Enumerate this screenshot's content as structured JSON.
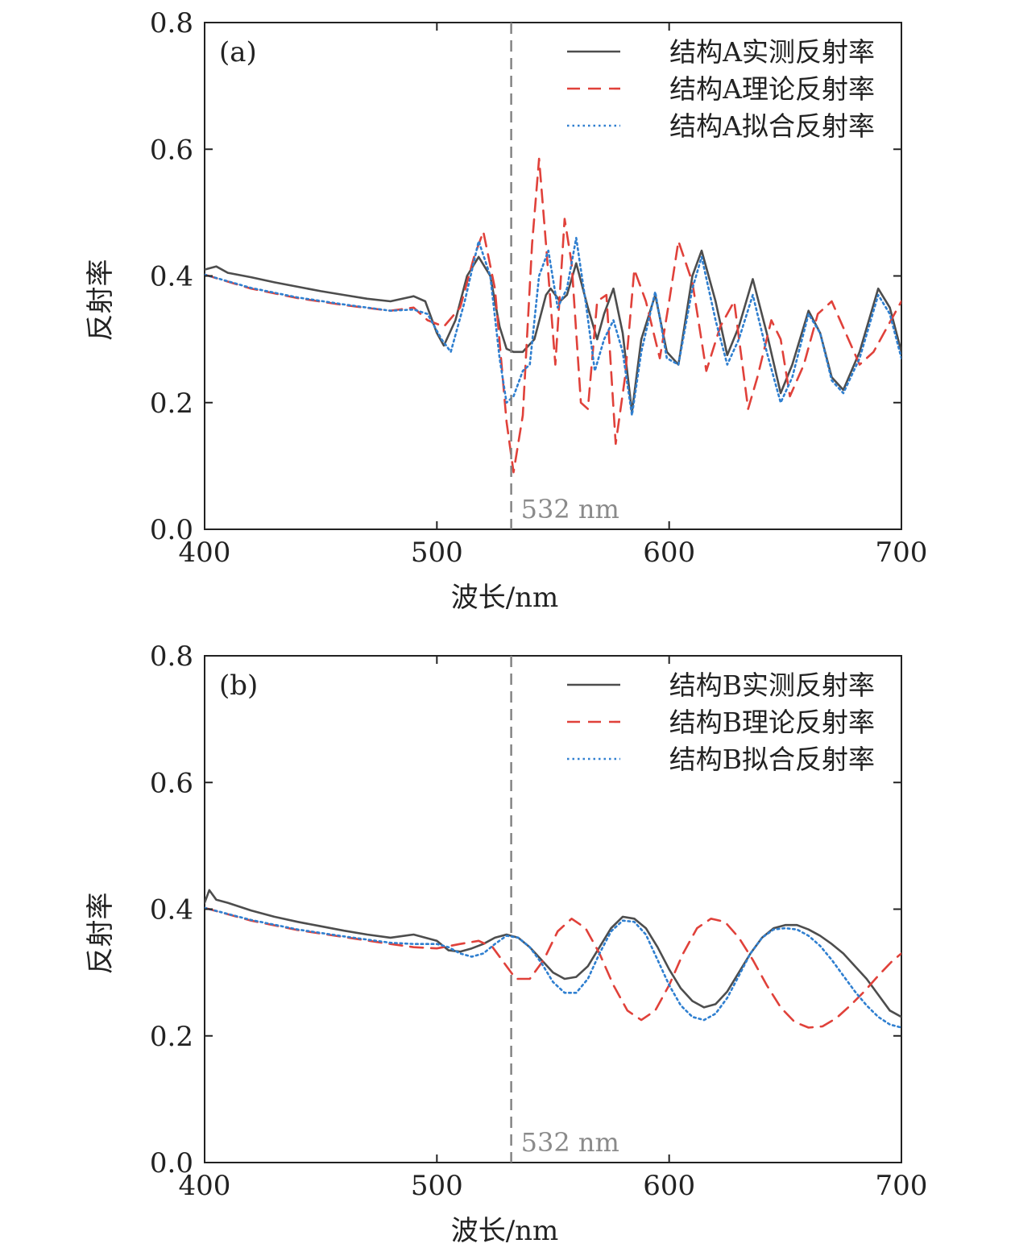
{
  "colors": {
    "measured": "#4d4d4d",
    "theory": "#e0413a",
    "fit": "#2f7fd0",
    "marker": "#808080"
  },
  "chart_data": [
    {
      "type": "line",
      "panel_label": "(a)",
      "xlabel": "波长/nm",
      "ylabel": "反射率",
      "xlim": [
        400,
        700
      ],
      "ylim": [
        0.0,
        0.8
      ],
      "xticks": [
        "400",
        "500",
        "600",
        "700"
      ],
      "yticks": [
        "0.0",
        "0.2",
        "0.4",
        "0.6",
        "0.8"
      ],
      "legend_position": "top-right",
      "grid": false,
      "vline": {
        "x": 532,
        "label": "532 nm"
      },
      "series": [
        {
          "name": "结构A实测反射率",
          "style": "solid",
          "x": [
            400,
            405,
            410,
            420,
            430,
            440,
            450,
            460,
            470,
            480,
            490,
            495,
            500,
            503,
            508,
            513,
            518,
            523,
            527,
            530,
            533,
            537,
            542,
            547,
            549,
            553,
            556,
            560,
            565,
            569,
            572,
            576,
            580,
            584,
            588,
            594,
            599,
            604,
            610,
            614,
            620,
            625,
            630,
            636,
            642,
            648,
            653,
            660,
            665,
            670,
            675,
            682,
            690,
            695,
            700
          ],
          "values": [
            0.41,
            0.415,
            0.405,
            0.398,
            0.39,
            0.383,
            0.376,
            0.37,
            0.364,
            0.36,
            0.368,
            0.36,
            0.31,
            0.29,
            0.33,
            0.4,
            0.43,
            0.4,
            0.32,
            0.285,
            0.28,
            0.28,
            0.3,
            0.37,
            0.38,
            0.36,
            0.37,
            0.42,
            0.35,
            0.3,
            0.34,
            0.38,
            0.31,
            0.185,
            0.3,
            0.37,
            0.28,
            0.26,
            0.4,
            0.44,
            0.36,
            0.275,
            0.32,
            0.395,
            0.31,
            0.215,
            0.26,
            0.345,
            0.31,
            0.24,
            0.22,
            0.28,
            0.38,
            0.35,
            0.28
          ]
        },
        {
          "name": "结构A理论反射率",
          "style": "dashed",
          "x": [
            400,
            420,
            440,
            460,
            480,
            490,
            496,
            503,
            510,
            516,
            520,
            525,
            530,
            533,
            537,
            541,
            544,
            547,
            551,
            555,
            558,
            562,
            565,
            569,
            573,
            577,
            581,
            585,
            590,
            596,
            600,
            604,
            610,
            616,
            622,
            628,
            634,
            638,
            644,
            648,
            652,
            658,
            664,
            670,
            676,
            682,
            688,
            694,
            700
          ],
          "values": [
            0.402,
            0.38,
            0.365,
            0.354,
            0.345,
            0.35,
            0.33,
            0.32,
            0.35,
            0.43,
            0.47,
            0.38,
            0.17,
            0.09,
            0.18,
            0.45,
            0.585,
            0.45,
            0.26,
            0.49,
            0.42,
            0.2,
            0.19,
            0.36,
            0.37,
            0.135,
            0.24,
            0.41,
            0.36,
            0.27,
            0.36,
            0.455,
            0.39,
            0.25,
            0.32,
            0.36,
            0.19,
            0.24,
            0.33,
            0.3,
            0.21,
            0.26,
            0.34,
            0.36,
            0.31,
            0.26,
            0.28,
            0.32,
            0.36
          ]
        },
        {
          "name": "结构A拟合反射率",
          "style": "dotted",
          "x": [
            400,
            420,
            440,
            460,
            480,
            490,
            496,
            502,
            506,
            512,
            518,
            523,
            527,
            530,
            533,
            537,
            540,
            544,
            548,
            552,
            556,
            560,
            564,
            568,
            572,
            576,
            580,
            584,
            588,
            594,
            599,
            604,
            610,
            614,
            620,
            625,
            630,
            636,
            642,
            648,
            653,
            660,
            665,
            670,
            675,
            682,
            690,
            695,
            700
          ],
          "values": [
            0.402,
            0.381,
            0.366,
            0.355,
            0.345,
            0.347,
            0.34,
            0.3,
            0.28,
            0.36,
            0.455,
            0.4,
            0.27,
            0.2,
            0.21,
            0.25,
            0.26,
            0.4,
            0.44,
            0.35,
            0.38,
            0.46,
            0.36,
            0.25,
            0.3,
            0.33,
            0.28,
            0.18,
            0.28,
            0.375,
            0.27,
            0.26,
            0.38,
            0.43,
            0.33,
            0.26,
            0.3,
            0.37,
            0.28,
            0.2,
            0.24,
            0.34,
            0.31,
            0.235,
            0.215,
            0.27,
            0.37,
            0.34,
            0.27
          ]
        }
      ]
    },
    {
      "type": "line",
      "panel_label": "(b)",
      "xlabel": "波长/nm",
      "ylabel": "反射率",
      "xlim": [
        400,
        700
      ],
      "ylim": [
        0.0,
        0.8
      ],
      "xticks": [
        "400",
        "500",
        "600",
        "700"
      ],
      "yticks": [
        "0.0",
        "0.2",
        "0.4",
        "0.6",
        "0.8"
      ],
      "legend_position": "top-right",
      "grid": false,
      "vline": {
        "x": 532,
        "label": "532 nm"
      },
      "series": [
        {
          "name": "结构B实测反射率",
          "style": "solid",
          "x": [
            400,
            402,
            405,
            410,
            420,
            430,
            440,
            450,
            460,
            470,
            480,
            490,
            500,
            505,
            510,
            515,
            520,
            525,
            530,
            535,
            540,
            545,
            550,
            555,
            560,
            565,
            570,
            575,
            580,
            585,
            590,
            595,
            600,
            605,
            610,
            615,
            620,
            625,
            630,
            635,
            640,
            645,
            650,
            655,
            660,
            665,
            670,
            675,
            680,
            685,
            690,
            695,
            700
          ],
          "values": [
            0.41,
            0.43,
            0.415,
            0.41,
            0.398,
            0.388,
            0.38,
            0.373,
            0.366,
            0.36,
            0.355,
            0.36,
            0.35,
            0.335,
            0.333,
            0.338,
            0.345,
            0.355,
            0.36,
            0.355,
            0.34,
            0.32,
            0.3,
            0.29,
            0.293,
            0.31,
            0.34,
            0.37,
            0.388,
            0.385,
            0.37,
            0.34,
            0.305,
            0.275,
            0.255,
            0.245,
            0.25,
            0.27,
            0.3,
            0.33,
            0.355,
            0.37,
            0.375,
            0.375,
            0.368,
            0.358,
            0.345,
            0.33,
            0.31,
            0.29,
            0.265,
            0.24,
            0.23
          ]
        },
        {
          "name": "结构B理论反射率",
          "style": "dashed",
          "x": [
            400,
            420,
            440,
            460,
            480,
            490,
            500,
            510,
            518,
            524,
            530,
            534,
            540,
            546,
            552,
            558,
            564,
            570,
            576,
            582,
            588,
            594,
            600,
            606,
            612,
            618,
            624,
            630,
            636,
            642,
            648,
            654,
            660,
            666,
            672,
            678,
            684,
            690,
            696,
            700
          ],
          "values": [
            0.402,
            0.382,
            0.367,
            0.356,
            0.345,
            0.34,
            0.338,
            0.345,
            0.35,
            0.34,
            0.31,
            0.29,
            0.29,
            0.32,
            0.365,
            0.385,
            0.37,
            0.33,
            0.28,
            0.24,
            0.225,
            0.24,
            0.28,
            0.33,
            0.37,
            0.385,
            0.38,
            0.355,
            0.32,
            0.28,
            0.245,
            0.222,
            0.213,
            0.215,
            0.228,
            0.248,
            0.27,
            0.295,
            0.318,
            0.33
          ]
        },
        {
          "name": "结构B拟合反射率",
          "style": "dotted",
          "x": [
            400,
            420,
            440,
            460,
            480,
            490,
            500,
            505,
            510,
            515,
            520,
            525,
            530,
            535,
            540,
            545,
            550,
            555,
            560,
            565,
            570,
            575,
            580,
            585,
            590,
            595,
            600,
            605,
            610,
            615,
            620,
            625,
            630,
            635,
            640,
            645,
            650,
            655,
            660,
            665,
            670,
            675,
            680,
            685,
            690,
            695,
            700
          ],
          "values": [
            0.402,
            0.383,
            0.368,
            0.357,
            0.347,
            0.345,
            0.345,
            0.34,
            0.33,
            0.325,
            0.33,
            0.345,
            0.358,
            0.355,
            0.34,
            0.315,
            0.285,
            0.268,
            0.268,
            0.29,
            0.33,
            0.365,
            0.382,
            0.38,
            0.36,
            0.32,
            0.28,
            0.248,
            0.23,
            0.225,
            0.235,
            0.26,
            0.295,
            0.33,
            0.355,
            0.368,
            0.37,
            0.368,
            0.358,
            0.342,
            0.32,
            0.295,
            0.27,
            0.248,
            0.23,
            0.218,
            0.213
          ]
        }
      ]
    }
  ]
}
